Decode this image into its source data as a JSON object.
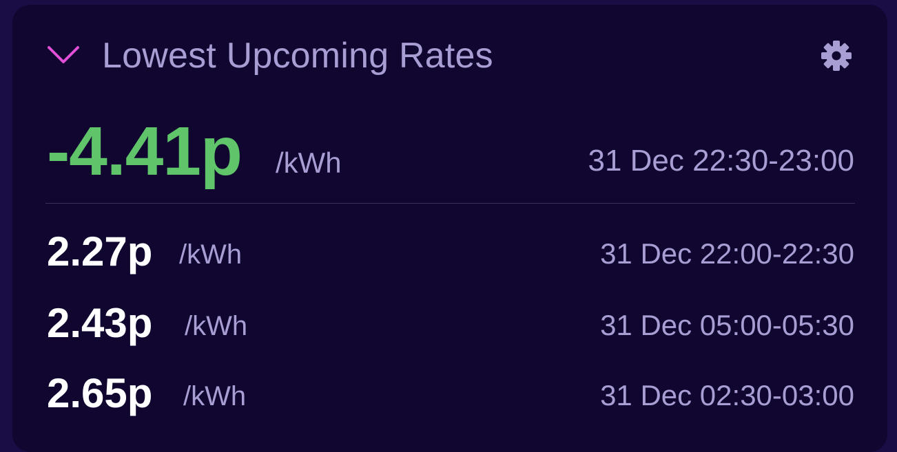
{
  "widget": {
    "title": "Lowest Upcoming Rates",
    "collapse_icon": "chevron-down-icon",
    "settings_icon": "gear-icon",
    "accent_color": "#e14fd6",
    "best_color": "#5fc46a"
  },
  "best_rate": {
    "price": "-4.41p",
    "unit": "/kWh",
    "time": "31 Dec 22:30-23:00"
  },
  "rates": [
    {
      "price": "2.27p",
      "unit": "/kWh",
      "time": "31 Dec 22:00-22:30"
    },
    {
      "price": "2.43p",
      "unit": "/kWh",
      "time": "31 Dec 05:00-05:30"
    },
    {
      "price": "2.65p",
      "unit": "/kWh",
      "time": "31 Dec 02:30-03:00"
    }
  ]
}
